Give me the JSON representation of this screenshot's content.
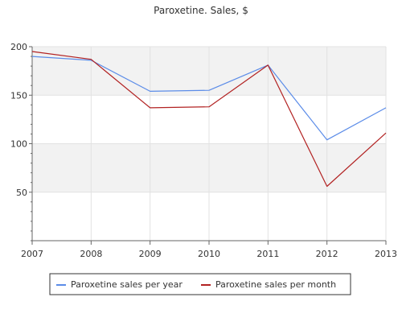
{
  "chart_data": {
    "type": "line",
    "title": "Paroxetine. Sales, $",
    "xlabel": "",
    "ylabel": "",
    "categories": [
      "2007",
      "2008",
      "2009",
      "2010",
      "2011",
      "2012",
      "2013"
    ],
    "ylim": [
      0,
      200
    ],
    "yticks": [
      50,
      100,
      150,
      200
    ],
    "grid": true,
    "legend_position": "bottom",
    "series": [
      {
        "name": "Paroxetine sales per year",
        "color": "#5b8ce8",
        "values": [
          190,
          186,
          154,
          155,
          181,
          104,
          137
        ]
      },
      {
        "name": "Paroxetine sales per month",
        "color": "#b22222",
        "values": [
          195,
          187,
          137,
          138,
          181,
          56,
          111
        ]
      }
    ]
  }
}
